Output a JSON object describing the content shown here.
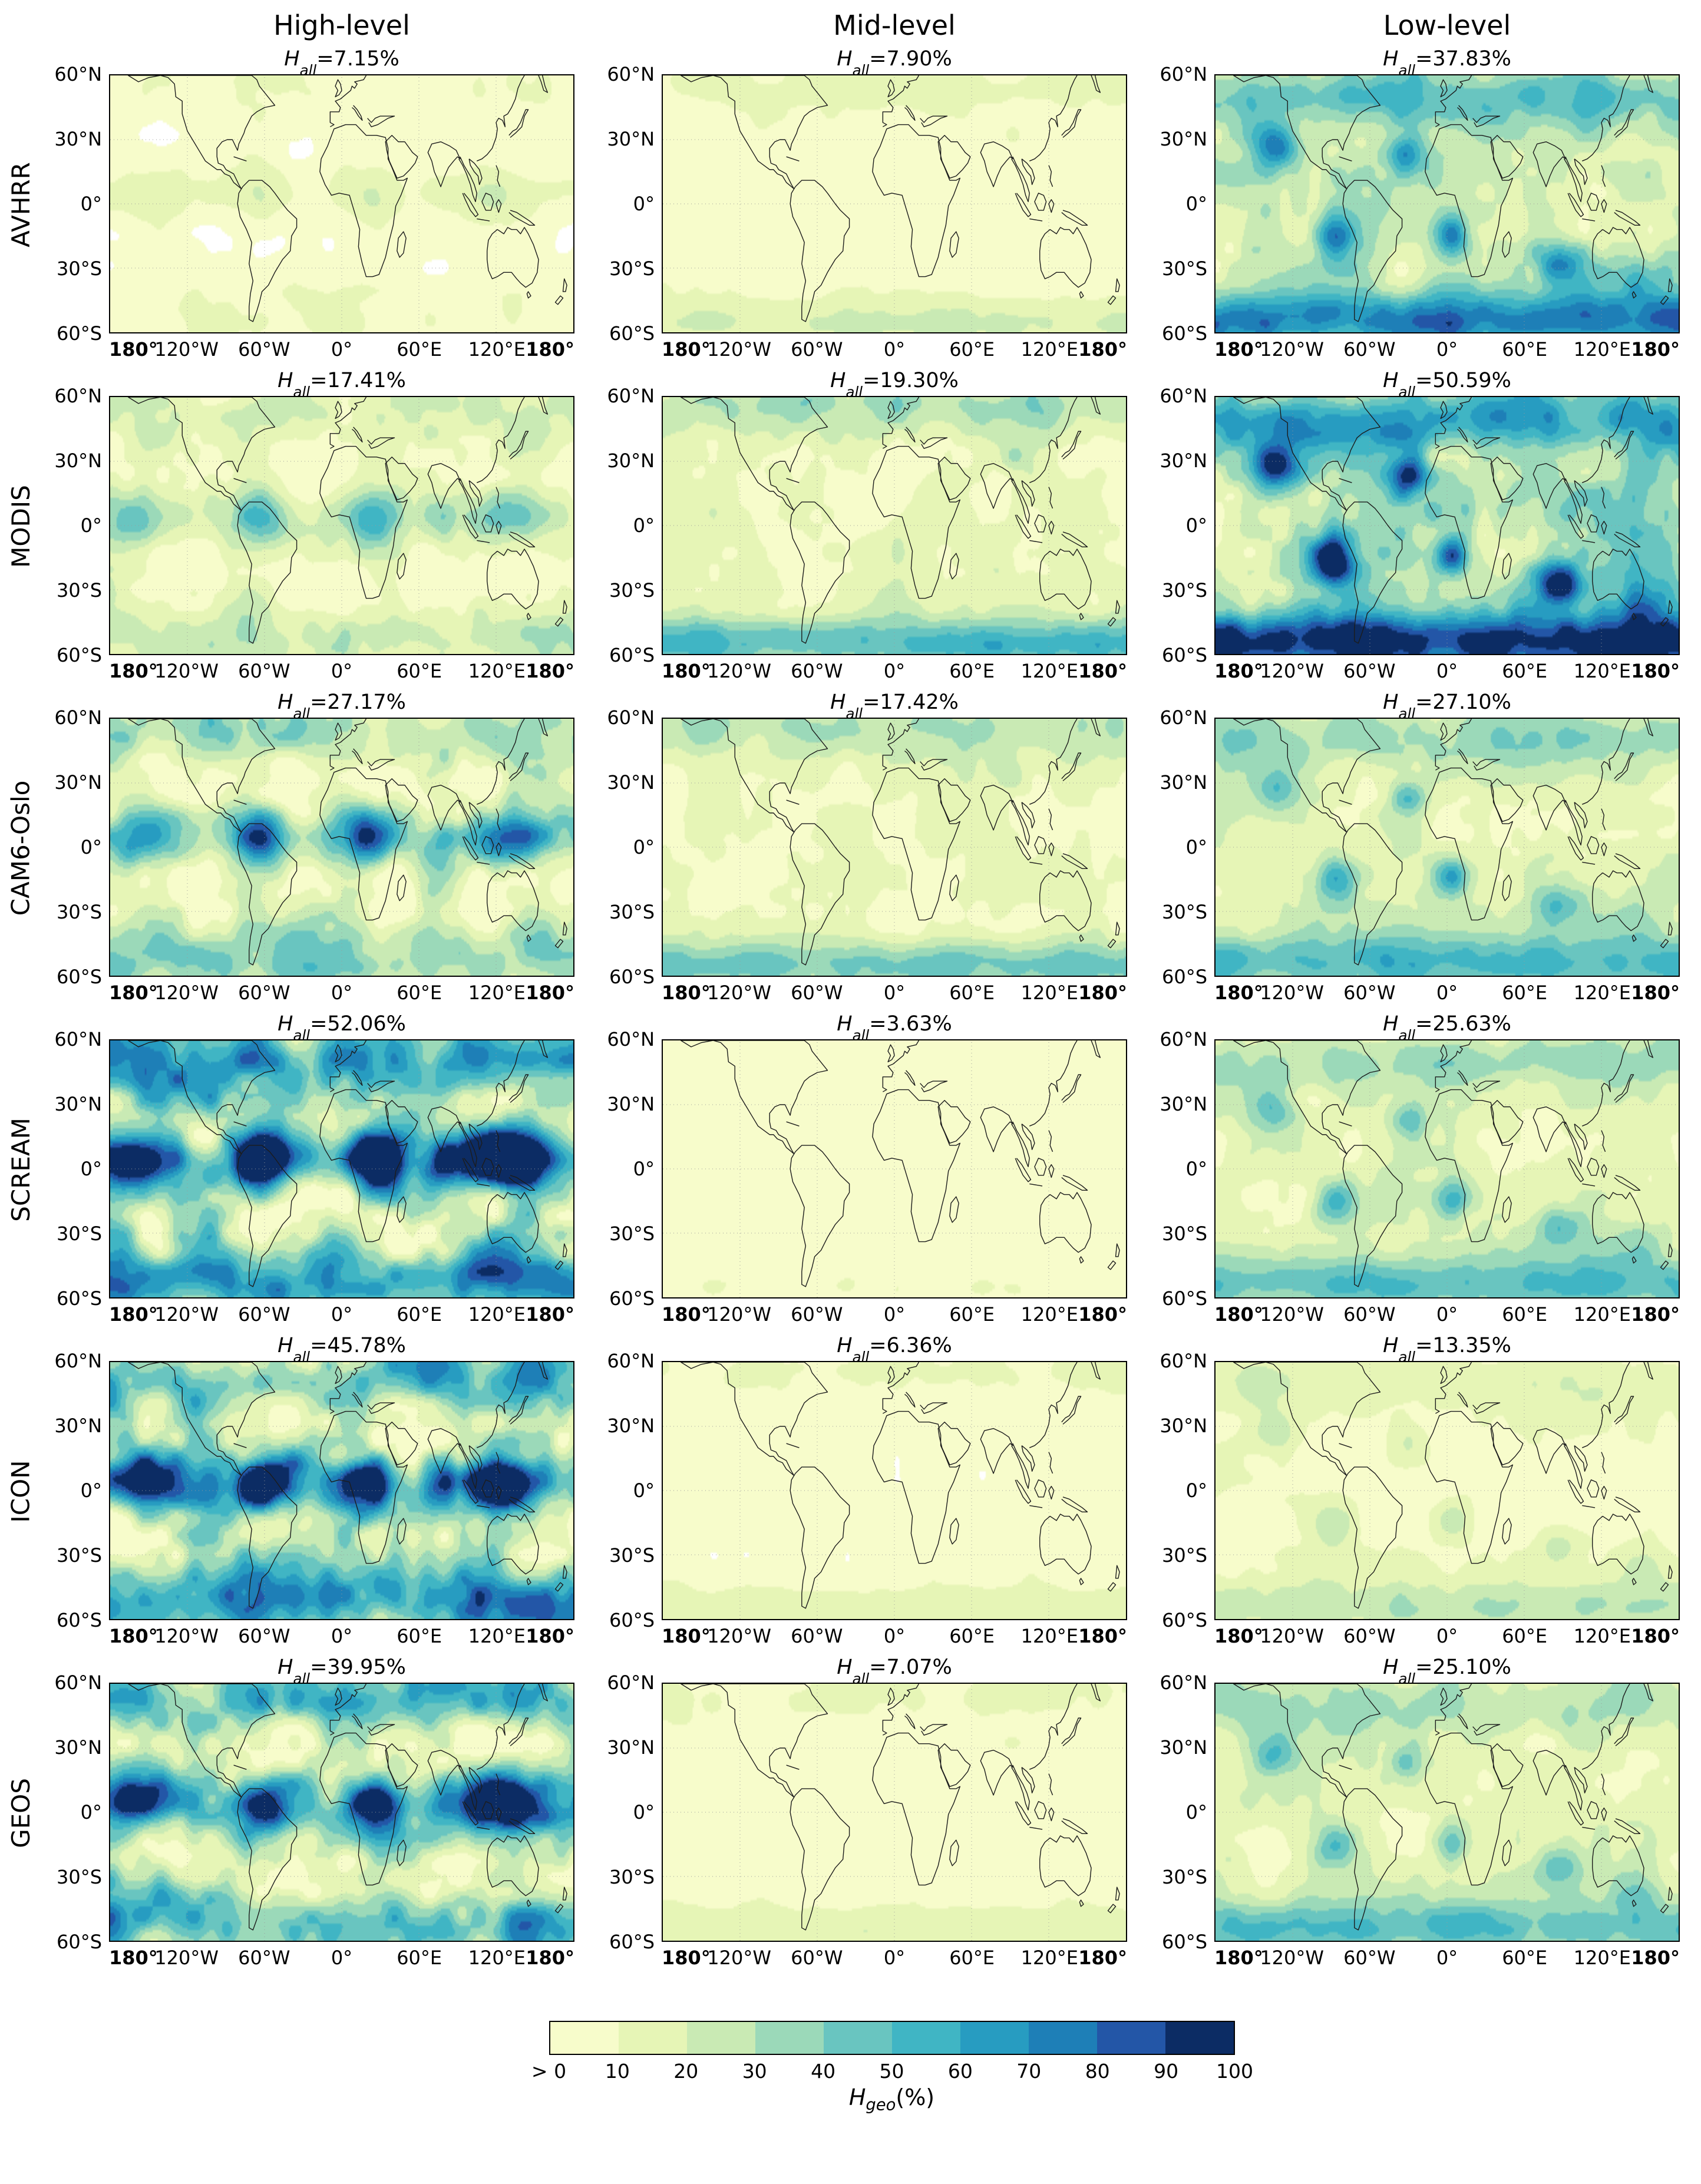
{
  "chart_data": {
    "type": "heatmap",
    "columns": [
      "High-level",
      "Mid-level",
      "Low-level"
    ],
    "rows": [
      "AVHRR",
      "MODIS",
      "CAM6-Oslo",
      "SCREAM",
      "ICON",
      "GEOS"
    ],
    "panel_title": {
      "var": "H",
      "sub": "all",
      "equals": " = ",
      "percent": "%"
    },
    "h_all": [
      [
        "7.15",
        "7.90",
        "37.83"
      ],
      [
        "17.41",
        "19.30",
        "50.59"
      ],
      [
        "27.17",
        "17.42",
        "27.10"
      ],
      [
        "52.06",
        "3.63",
        "25.63"
      ],
      [
        "45.78",
        "6.36",
        "13.35"
      ],
      [
        "39.95",
        "7.07",
        "25.10"
      ]
    ],
    "axes": {
      "lat_ticks": [
        "60°N",
        "30°N",
        "0°",
        "30°S",
        "60°S"
      ],
      "lon_ticks": [
        "180°",
        "120°W",
        "60°W",
        "0°",
        "60°E",
        "120°E",
        "180°"
      ],
      "lat_range": [
        -60,
        60
      ],
      "lon_range": [
        -180,
        180
      ],
      "grid": true
    },
    "colorbar": {
      "ticks": [
        "> 0",
        "10",
        "20",
        "30",
        "40",
        "50",
        "60",
        "70",
        "80",
        "90",
        "100"
      ],
      "label": {
        "var": "H",
        "sub": "geo",
        "suffix": "(%)"
      },
      "bin_edges": [
        0,
        10,
        20,
        30,
        40,
        50,
        60,
        70,
        80,
        90,
        100
      ],
      "colors": [
        "#f7fccb",
        "#e6f5b6",
        "#c9eab4",
        "#9bd9b9",
        "#69c5c0",
        "#40b5c4",
        "#279cc1",
        "#1e7fb7",
        "#2356a7",
        "#0c2c64"
      ]
    }
  }
}
